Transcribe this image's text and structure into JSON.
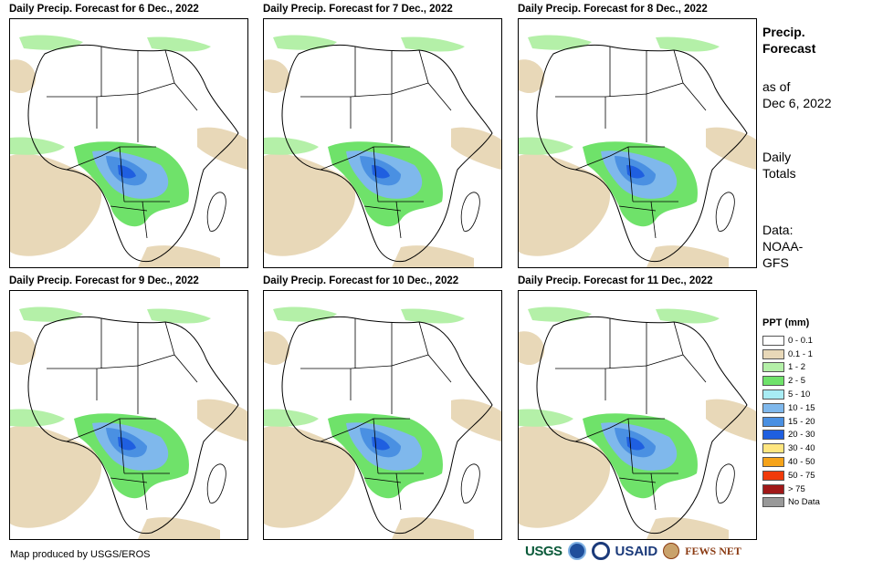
{
  "panels": [
    {
      "title": "Daily Precip. Forecast for 6 Dec., 2022"
    },
    {
      "title": "Daily Precip. Forecast for 7 Dec., 2022"
    },
    {
      "title": "Daily Precip. Forecast for 8 Dec., 2022"
    },
    {
      "title": "Daily Precip. Forecast for 9 Dec., 2022"
    },
    {
      "title": "Daily Precip. Forecast for 10 Dec., 2022"
    },
    {
      "title": "Daily Precip. Forecast for 11 Dec., 2022"
    }
  ],
  "side": {
    "title_line1": "Precip.",
    "title_line2": "Forecast",
    "asof_line1": "as of",
    "asof_line2": "Dec 6, 2022",
    "totals_line1": "Daily",
    "totals_line2": "Totals",
    "data_line1": "Data:",
    "data_line2": "NOAA-",
    "data_line3": "GFS"
  },
  "legend": {
    "title": "PPT (mm)",
    "items": [
      {
        "label": "0 - 0.1",
        "color": "#ffffff"
      },
      {
        "label": "0.1 - 1",
        "color": "#e8d8b8"
      },
      {
        "label": "1 - 2",
        "color": "#b4f0a8"
      },
      {
        "label": "2 - 5",
        "color": "#6fe26a"
      },
      {
        "label": "5 - 10",
        "color": "#a8ecf4"
      },
      {
        "label": "10 - 15",
        "color": "#7fb8ec"
      },
      {
        "label": "15 - 20",
        "color": "#4a90e2"
      },
      {
        "label": "20 - 30",
        "color": "#1f5fe0"
      },
      {
        "label": "30 - 40",
        "color": "#ffe680"
      },
      {
        "label": "40 - 50",
        "color": "#f5a31a"
      },
      {
        "label": "50 - 75",
        "color": "#f03a0a"
      },
      {
        "label": "> 75",
        "color": "#a01818"
      },
      {
        "label": "No Data",
        "color": "#999999"
      }
    ]
  },
  "credit": "Map produced by USGS/EROS",
  "logos": {
    "usgs": "USGS",
    "usaid": "USAID",
    "fews": "FEWS NET"
  }
}
